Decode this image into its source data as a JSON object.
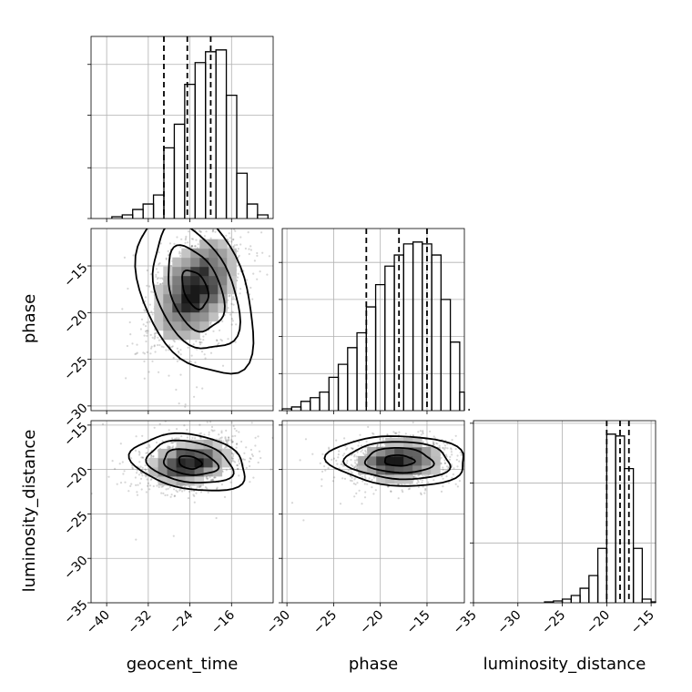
{
  "chart_data": {
    "type": "corner",
    "grid": true,
    "parameters": [
      "geocent_time",
      "phase",
      "luminosity_distance"
    ],
    "axes": {
      "geocent_time": {
        "label": "geocent_time",
        "range": [
          -43,
          -8
        ],
        "ticks": [
          -40,
          -32,
          -24,
          -16
        ],
        "tick_labels": [
          "−40",
          "−32",
          "−24",
          "−16"
        ]
      },
      "phase": {
        "label": "phase",
        "range": [
          -30.5,
          -11
        ],
        "ticks": [
          -30,
          -25,
          -20,
          -15
        ],
        "tick_labels": [
          "−30",
          "−25",
          "−20",
          "−15"
        ]
      },
      "luminosity_distance": {
        "label": "luminosity_distance",
        "range": [
          -35,
          -14.5
        ],
        "ticks": [
          -35,
          -30,
          -25,
          -20,
          -15
        ],
        "tick_labels": [
          "−35",
          "−30",
          "−25",
          "−20",
          "−15"
        ]
      }
    },
    "histograms": [
      {
        "param": "geocent_time",
        "bin_edges": [
          -39,
          -37,
          -35,
          -33,
          -31,
          -29,
          -27,
          -25,
          -23,
          -21,
          -19,
          -17,
          -15,
          -13,
          -11,
          -9
        ],
        "counts": [
          0.01,
          0.02,
          0.05,
          0.08,
          0.13,
          0.39,
          0.52,
          0.74,
          0.86,
          0.92,
          0.93,
          0.68,
          0.25,
          0.08,
          0.02
        ],
        "yticks": [
          0,
          0.28,
          0.57,
          0.85
        ],
        "quantiles": [
          -29,
          -24.5,
          -20
        ]
      },
      {
        "param": "phase",
        "bin_edges": [
          -30.5,
          -29.5,
          -28.5,
          -27.5,
          -26.5,
          -25.5,
          -24.5,
          -23.5,
          -22.5,
          -21.5,
          -20.5,
          -19.5,
          -18.5,
          -17.5,
          -16.5,
          -15.5,
          -14.5,
          -13.5,
          -12.5,
          -11.5,
          -10.5
        ],
        "counts": [
          0.01,
          0.02,
          0.05,
          0.07,
          0.1,
          0.18,
          0.25,
          0.34,
          0.42,
          0.56,
          0.68,
          0.78,
          0.84,
          0.9,
          0.91,
          0.9,
          0.84,
          0.6,
          0.37,
          0.1,
          0.01
        ],
        "yticks": [
          0,
          0.2,
          0.4,
          0.6,
          0.8
        ],
        "quantiles": [
          -21.5,
          -18,
          -15
        ]
      },
      {
        "param": "luminosity_distance",
        "bin_edges": [
          -27,
          -26,
          -25,
          -24,
          -23,
          -22,
          -21,
          -20,
          -19,
          -18,
          -17,
          -16,
          -15,
          -14
        ],
        "counts": [
          0.005,
          0.01,
          0.02,
          0.04,
          0.08,
          0.15,
          0.3,
          0.93,
          0.92,
          0.74,
          0.3,
          0.02,
          0.005
        ],
        "yticks": [
          0,
          0.33,
          0.66,
          0.99
        ],
        "quantiles": [
          -20,
          -18.5,
          -17.5
        ]
      }
    ],
    "joint": [
      {
        "x": "geocent_time",
        "y": "phase",
        "mean": [
          -23,
          -17.5
        ],
        "sd": [
          4.5,
          3.2
        ],
        "rho": 0.45,
        "contours": [
          [
            2.5,
            1.9
          ],
          [
            5.4,
            4.2
          ],
          [
            8.3,
            6.2
          ],
          [
            11.2,
            8.6
          ]
        ]
      },
      {
        "x": "geocent_time",
        "y": "luminosity_distance",
        "mean": [
          -24,
          -19.2
        ],
        "sd": [
          4.5,
          1.4
        ],
        "rho": 0.3,
        "contours": [
          [
            2.2,
            0.7
          ],
          [
            5.2,
            1.4
          ],
          [
            8.2,
            2.3
          ],
          [
            11.0,
            3.1
          ]
        ]
      },
      {
        "x": "phase",
        "y": "luminosity_distance",
        "mean": [
          -18,
          -19
        ],
        "sd": [
          2.7,
          1.3
        ],
        "rho": 0.1,
        "contours": [
          [
            1.6,
            0.6
          ],
          [
            3.6,
            1.4
          ],
          [
            5.6,
            2.1
          ],
          [
            7.4,
            2.8
          ]
        ]
      }
    ]
  }
}
